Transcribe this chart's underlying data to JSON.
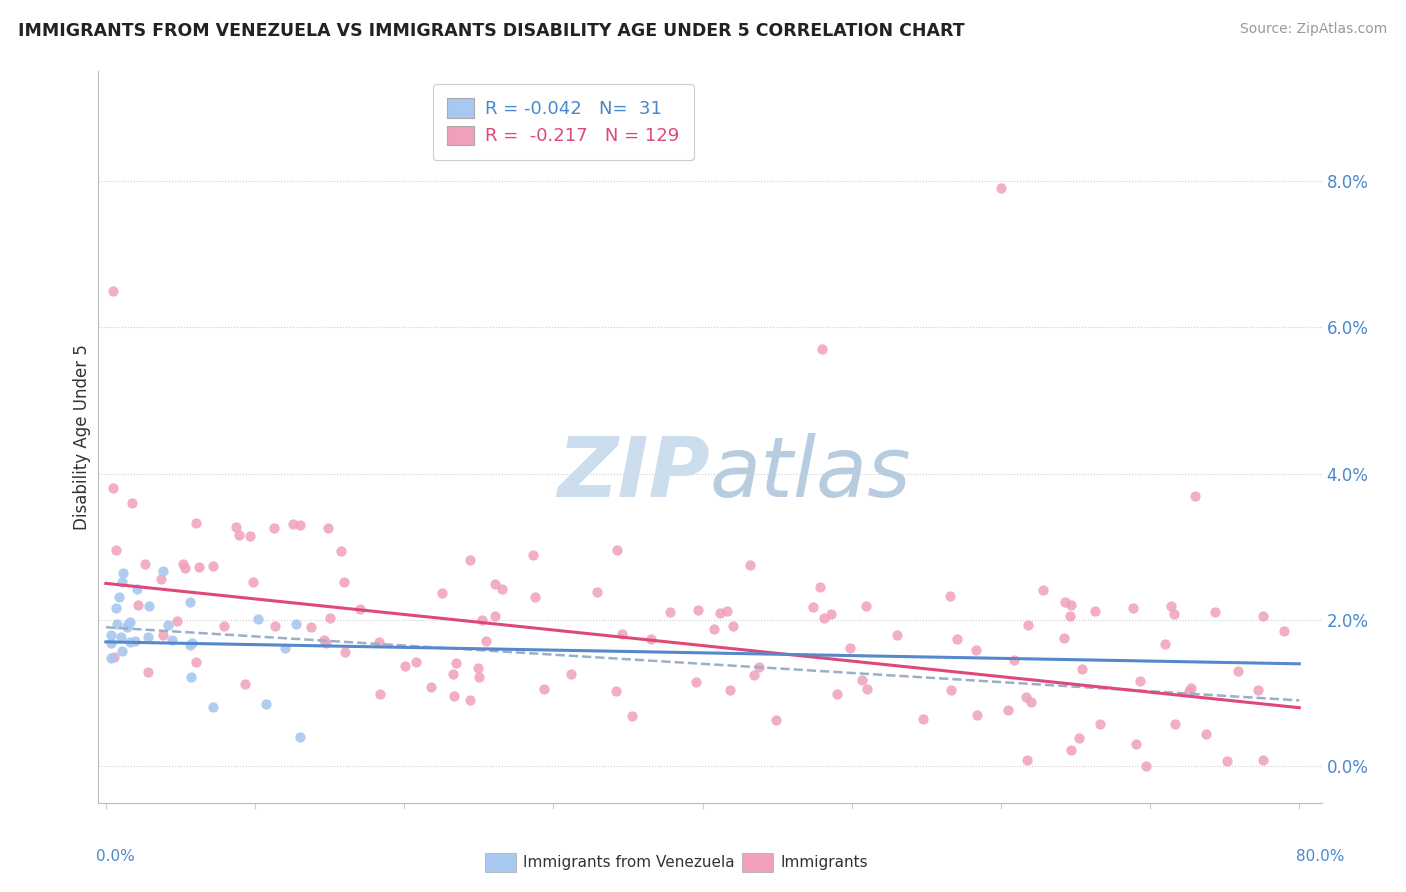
{
  "title": "IMMIGRANTS FROM VENEZUELA VS IMMIGRANTS DISABILITY AGE UNDER 5 CORRELATION CHART",
  "source": "Source: ZipAtlas.com",
  "ylabel": "Disability Age Under 5",
  "legend_label1": "Immigrants from Venezuela",
  "legend_label2": "Immigrants",
  "r1": -0.042,
  "n1": 31,
  "r2": -0.217,
  "n2": 129,
  "blue_color": "#a8c8f0",
  "pink_color": "#f0a0b8",
  "blue_line_color": "#5588cc",
  "pink_line_color": "#e04878",
  "gray_dash_color": "#9ab0c8",
  "watermark_color": "#ccdded",
  "x_min": 0.0,
  "x_max": 0.8,
  "y_min": -0.005,
  "y_max": 0.095,
  "y_ticks": [
    0.0,
    0.02,
    0.04,
    0.06,
    0.08
  ],
  "y_tick_labels": [
    "0.0%",
    "2.0%",
    "4.0%",
    "6.0%",
    "8.0%"
  ],
  "x_bottom_left": "0.0%",
  "x_bottom_right": "80.0%"
}
